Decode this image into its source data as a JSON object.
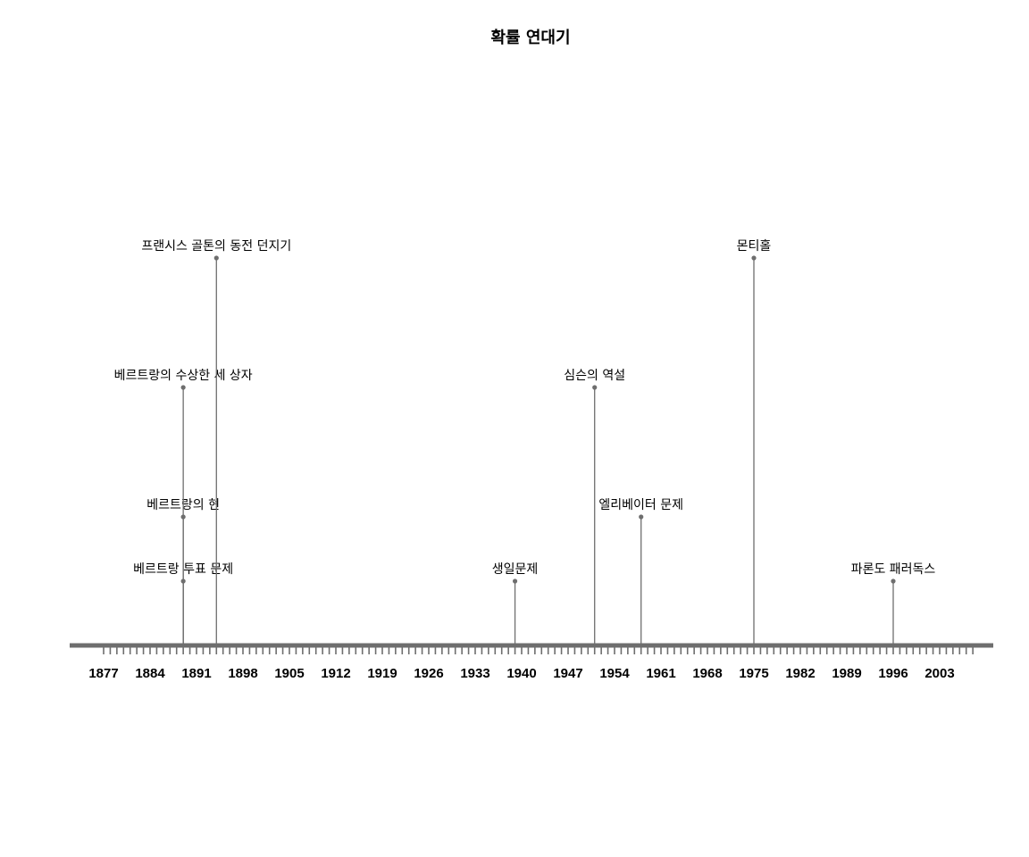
{
  "chart_data": {
    "type": "timeline",
    "title": "확률 연대기",
    "x_range": [
      1877,
      2008
    ],
    "axis_color": "#6e6e6e",
    "stem_color": "#6e6e6e",
    "tick_labels": [
      "1877",
      "1884",
      "1891",
      "1898",
      "1905",
      "1912",
      "1919",
      "1926",
      "1933",
      "1940",
      "1947",
      "1954",
      "1961",
      "1968",
      "1975",
      "1982",
      "1989",
      "1996",
      "2003"
    ],
    "events": [
      {
        "year": 1889,
        "label": "베르트랑 투표 문제",
        "level": 1
      },
      {
        "year": 1889,
        "label": "베르트랑의 현",
        "level": 2
      },
      {
        "year": 1889,
        "label": "베르트랑의 수상한 세 상자",
        "level": 4
      },
      {
        "year": 1894,
        "label": "프랜시스 골톤의 동전 던지기",
        "level": 6
      },
      {
        "year": 1939,
        "label": "생일문제",
        "level": 1
      },
      {
        "year": 1951,
        "label": "심슨의 역설",
        "level": 4
      },
      {
        "year": 1958,
        "label": "엘리베이터 문제",
        "level": 2
      },
      {
        "year": 1975,
        "label": "몬티홀",
        "level": 6
      },
      {
        "year": 1996,
        "label": "파론도 패러독스",
        "level": 1
      }
    ]
  }
}
